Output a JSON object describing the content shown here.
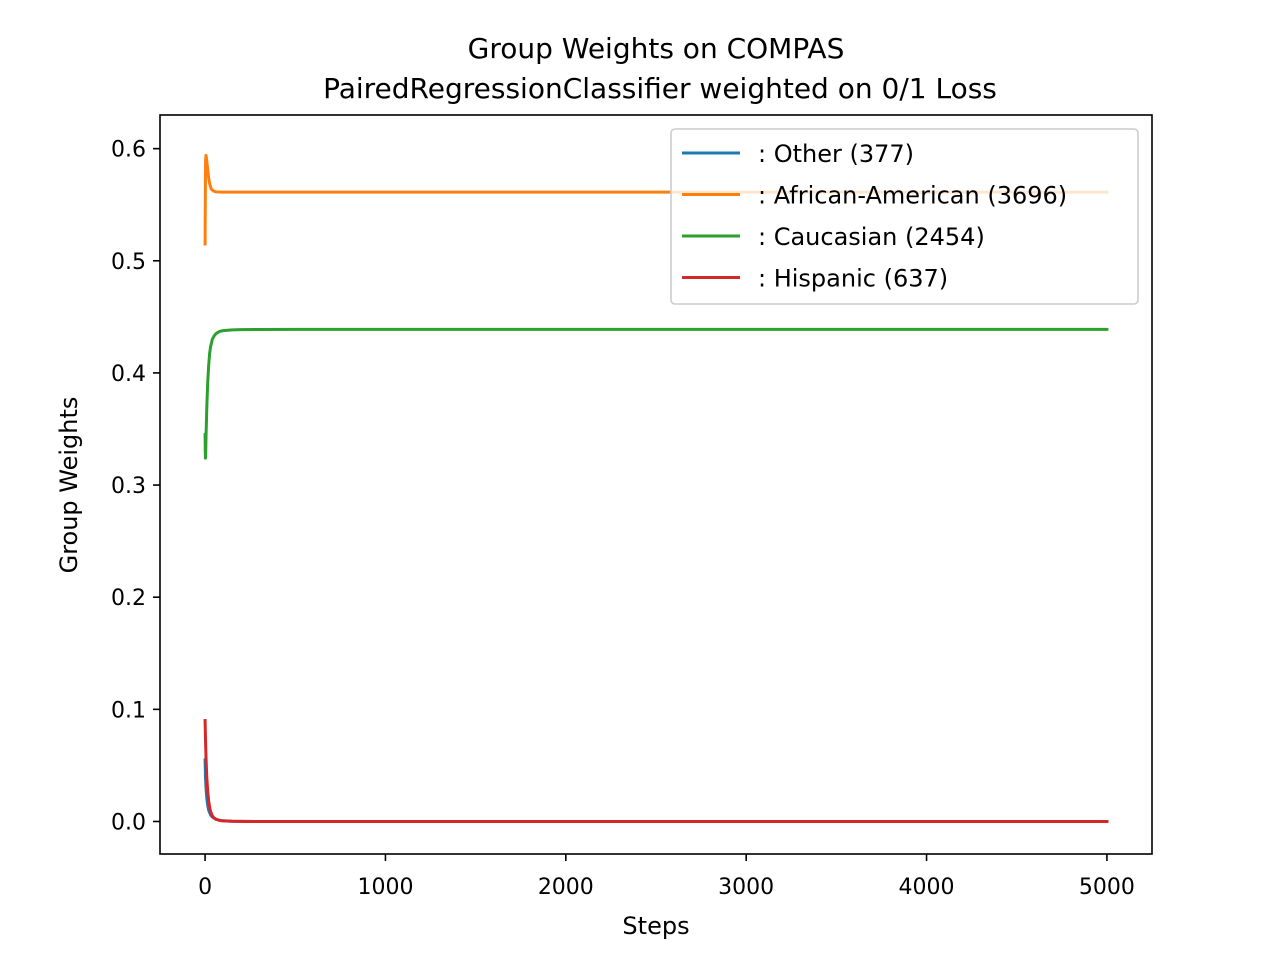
{
  "chart_data": {
    "type": "line",
    "title": "Group Weights on COMPAS",
    "subtitle": "PairedRegressionClassifier weighted on 0/1 Loss",
    "xlabel": "Steps",
    "ylabel": "Group Weights",
    "xlim": [
      -250,
      5250
    ],
    "ylim": [
      -0.029,
      0.63
    ],
    "xticks": [
      0,
      1000,
      2000,
      3000,
      4000,
      5000
    ],
    "xtick_labels": [
      "0",
      "1000",
      "2000",
      "3000",
      "4000",
      "5000"
    ],
    "yticks": [
      0.0,
      0.1,
      0.2,
      0.3,
      0.4,
      0.5,
      0.6
    ],
    "ytick_labels": [
      "0.0",
      "0.1",
      "0.2",
      "0.3",
      "0.4",
      "0.5",
      "0.6"
    ],
    "grid": false,
    "legend_position": "top-right",
    "series": [
      {
        "name": ": Other  (377)",
        "color": "#1f77b4",
        "x": [
          0,
          2,
          5,
          10,
          15,
          20,
          30,
          40,
          60,
          80,
          100,
          150,
          200,
          300,
          500,
          1000,
          2000,
          3000,
          4000,
          5000
        ],
        "y": [
          0.055,
          0.04,
          0.03,
          0.02,
          0.014,
          0.01,
          0.006,
          0.004,
          0.002,
          0.001,
          0.0006,
          0.0002,
          0.0001,
          0.0,
          0.0,
          0.0,
          0.0,
          0.0,
          0.0,
          0.0
        ]
      },
      {
        "name": ": African-American  (3696)",
        "color": "#ff7f0e",
        "x": [
          0,
          1,
          2,
          3,
          5,
          8,
          12,
          16,
          20,
          25,
          30,
          35,
          40,
          50,
          60,
          80,
          100,
          150,
          200,
          300,
          500,
          1000,
          2000,
          3000,
          4000,
          5000
        ],
        "y": [
          0.515,
          0.55,
          0.575,
          0.59,
          0.594,
          0.591,
          0.585,
          0.579,
          0.574,
          0.569,
          0.566,
          0.564,
          0.563,
          0.562,
          0.5615,
          0.5613,
          0.5612,
          0.5612,
          0.5612,
          0.5612,
          0.5612,
          0.5612,
          0.5612,
          0.5612,
          0.5612,
          0.5612
        ]
      },
      {
        "name": ": Caucasian  (2454)",
        "color": "#2ca02c",
        "x": [
          0,
          1,
          2,
          3,
          4,
          5,
          8,
          10,
          15,
          20,
          25,
          30,
          40,
          50,
          60,
          80,
          100,
          150,
          200,
          300,
          500,
          1000,
          2000,
          3000,
          4000,
          5000
        ],
        "y": [
          0.345,
          0.33,
          0.324,
          0.326,
          0.333,
          0.342,
          0.36,
          0.372,
          0.393,
          0.407,
          0.417,
          0.423,
          0.43,
          0.433,
          0.435,
          0.437,
          0.4377,
          0.4384,
          0.4386,
          0.4387,
          0.4388,
          0.4388,
          0.4388,
          0.4388,
          0.4388,
          0.4388
        ]
      },
      {
        "name": ": Hispanic  (637)",
        "color": "#d62728",
        "x": [
          0,
          2,
          5,
          8,
          10,
          15,
          20,
          25,
          30,
          40,
          50,
          60,
          80,
          100,
          150,
          200,
          300,
          500,
          1000,
          2000,
          3000,
          4000,
          5000
        ],
        "y": [
          0.09,
          0.075,
          0.058,
          0.045,
          0.038,
          0.026,
          0.018,
          0.013,
          0.009,
          0.005,
          0.003,
          0.002,
          0.001,
          0.0005,
          0.0002,
          0.0001,
          0.0,
          0.0,
          0.0,
          0.0,
          0.0,
          0.0,
          0.0
        ]
      }
    ]
  }
}
